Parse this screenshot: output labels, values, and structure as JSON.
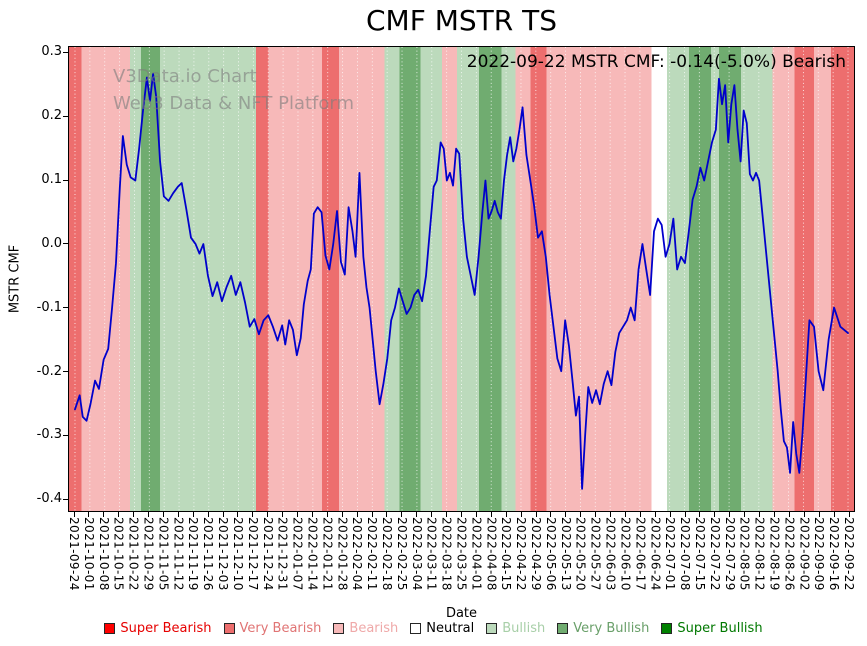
{
  "chart_data": {
    "type": "line",
    "title": "CMF MSTR TS",
    "xlabel": "Date",
    "ylabel": "MSTR CMF",
    "annotation": "2022-09-22 MSTR CMF: -0.14(-5.0%) Bearish",
    "watermark": {
      "line1": "V3Data.io Chart",
      "line2": "Web3 Data & NFT Platform"
    },
    "x_range": [
      "2021-09-24",
      "2022-09-22"
    ],
    "ylim": [
      -0.42,
      0.31
    ],
    "y_tick_labels": [
      0.3,
      0.2,
      0.1,
      0.0,
      -0.1,
      -0.2,
      -0.3,
      -0.4
    ],
    "x_tick_labels": [
      "2021-09-24",
      "2021-10-01",
      "2021-10-08",
      "2021-10-15",
      "2021-10-22",
      "2021-10-29",
      "2021-11-05",
      "2021-11-12",
      "2021-11-19",
      "2021-11-26",
      "2021-12-03",
      "2021-12-10",
      "2021-12-17",
      "2021-12-24",
      "2021-12-31",
      "2022-01-07",
      "2022-01-14",
      "2022-01-21",
      "2022-01-28",
      "2022-02-04",
      "2022-02-11",
      "2022-02-18",
      "2022-02-25",
      "2022-03-04",
      "2022-03-11",
      "2022-03-18",
      "2022-03-25",
      "2022-04-01",
      "2022-04-08",
      "2022-04-15",
      "2022-04-22",
      "2022-04-29",
      "2022-05-06",
      "2022-05-13",
      "2022-05-20",
      "2022-05-27",
      "2022-06-03",
      "2022-06-10",
      "2022-06-17",
      "2022-06-24",
      "2022-07-01",
      "2022-07-08",
      "2022-07-15",
      "2022-07-22",
      "2022-07-29",
      "2022-08-05",
      "2022-08-12",
      "2022-08-19",
      "2022-08-26",
      "2022-09-02",
      "2022-09-09",
      "2022-09-16",
      "2022-09-22"
    ],
    "grid": {
      "axis": "x",
      "style": "dotted",
      "color": "#ffffff"
    },
    "band_colors": {
      "super-bearish": "#ff0000",
      "very-bearish": "#ed6e6e",
      "bearish": "#f7b9b9",
      "neutral": "#ffffff",
      "bullish": "#bcdabc",
      "very-bullish": "#70ac70",
      "super-bullish": "#008000"
    },
    "background_bands": [
      {
        "start": 0.0,
        "end": 0.016,
        "state": "very-bearish"
      },
      {
        "start": 0.016,
        "end": 0.078,
        "state": "bearish"
      },
      {
        "start": 0.078,
        "end": 0.092,
        "state": "bullish"
      },
      {
        "start": 0.092,
        "end": 0.116,
        "state": "very-bullish"
      },
      {
        "start": 0.116,
        "end": 0.238,
        "state": "bullish"
      },
      {
        "start": 0.238,
        "end": 0.254,
        "state": "very-bearish"
      },
      {
        "start": 0.254,
        "end": 0.322,
        "state": "bearish"
      },
      {
        "start": 0.322,
        "end": 0.344,
        "state": "very-bearish"
      },
      {
        "start": 0.344,
        "end": 0.402,
        "state": "bearish"
      },
      {
        "start": 0.402,
        "end": 0.421,
        "state": "bullish"
      },
      {
        "start": 0.421,
        "end": 0.448,
        "state": "very-bullish"
      },
      {
        "start": 0.448,
        "end": 0.475,
        "state": "bullish"
      },
      {
        "start": 0.475,
        "end": 0.494,
        "state": "bearish"
      },
      {
        "start": 0.494,
        "end": 0.522,
        "state": "bullish"
      },
      {
        "start": 0.522,
        "end": 0.551,
        "state": "very-bullish"
      },
      {
        "start": 0.551,
        "end": 0.569,
        "state": "bullish"
      },
      {
        "start": 0.569,
        "end": 0.588,
        "state": "bearish"
      },
      {
        "start": 0.588,
        "end": 0.608,
        "state": "very-bearish"
      },
      {
        "start": 0.608,
        "end": 0.742,
        "state": "bearish"
      },
      {
        "start": 0.742,
        "end": 0.762,
        "state": "neutral"
      },
      {
        "start": 0.762,
        "end": 0.79,
        "state": "bullish"
      },
      {
        "start": 0.79,
        "end": 0.818,
        "state": "very-bullish"
      },
      {
        "start": 0.818,
        "end": 0.828,
        "state": "bullish"
      },
      {
        "start": 0.828,
        "end": 0.856,
        "state": "very-bullish"
      },
      {
        "start": 0.856,
        "end": 0.896,
        "state": "bullish"
      },
      {
        "start": 0.896,
        "end": 0.924,
        "state": "bearish"
      },
      {
        "start": 0.924,
        "end": 0.949,
        "state": "very-bearish"
      },
      {
        "start": 0.949,
        "end": 0.971,
        "state": "bearish"
      },
      {
        "start": 0.971,
        "end": 1.0,
        "state": "very-bearish"
      }
    ],
    "line": {
      "name": "MSTR CMF",
      "color": "#0000cc",
      "points": [
        [
          0.0,
          -0.26
        ],
        [
          0.006,
          -0.238
        ],
        [
          0.01,
          -0.272
        ],
        [
          0.015,
          -0.278
        ],
        [
          0.02,
          -0.252
        ],
        [
          0.026,
          -0.215
        ],
        [
          0.031,
          -0.228
        ],
        [
          0.037,
          -0.182
        ],
        [
          0.043,
          -0.165
        ],
        [
          0.048,
          -0.1
        ],
        [
          0.053,
          -0.03
        ],
        [
          0.058,
          0.09
        ],
        [
          0.062,
          0.17
        ],
        [
          0.067,
          0.125
        ],
        [
          0.072,
          0.105
        ],
        [
          0.078,
          0.1
        ],
        [
          0.083,
          0.15
        ],
        [
          0.088,
          0.21
        ],
        [
          0.093,
          0.262
        ],
        [
          0.097,
          0.225
        ],
        [
          0.101,
          0.268
        ],
        [
          0.105,
          0.232
        ],
        [
          0.11,
          0.13
        ],
        [
          0.115,
          0.075
        ],
        [
          0.121,
          0.068
        ],
        [
          0.127,
          0.08
        ],
        [
          0.133,
          0.09
        ],
        [
          0.138,
          0.096
        ],
        [
          0.144,
          0.055
        ],
        [
          0.15,
          0.01
        ],
        [
          0.156,
          0.0
        ],
        [
          0.161,
          -0.015
        ],
        [
          0.166,
          0.0
        ],
        [
          0.172,
          -0.05
        ],
        [
          0.178,
          -0.082
        ],
        [
          0.184,
          -0.06
        ],
        [
          0.19,
          -0.09
        ],
        [
          0.196,
          -0.068
        ],
        [
          0.202,
          -0.05
        ],
        [
          0.208,
          -0.08
        ],
        [
          0.214,
          -0.06
        ],
        [
          0.22,
          -0.092
        ],
        [
          0.226,
          -0.13
        ],
        [
          0.232,
          -0.118
        ],
        [
          0.238,
          -0.142
        ],
        [
          0.244,
          -0.12
        ],
        [
          0.25,
          -0.112
        ],
        [
          0.256,
          -0.13
        ],
        [
          0.262,
          -0.152
        ],
        [
          0.268,
          -0.128
        ],
        [
          0.272,
          -0.158
        ],
        [
          0.277,
          -0.12
        ],
        [
          0.282,
          -0.135
        ],
        [
          0.287,
          -0.175
        ],
        [
          0.292,
          -0.148
        ],
        [
          0.296,
          -0.095
        ],
        [
          0.301,
          -0.058
        ],
        [
          0.305,
          -0.04
        ],
        [
          0.309,
          0.048
        ],
        [
          0.314,
          0.058
        ],
        [
          0.319,
          0.05
        ],
        [
          0.324,
          -0.018
        ],
        [
          0.329,
          -0.04
        ],
        [
          0.334,
          0.0
        ],
        [
          0.339,
          0.052
        ],
        [
          0.344,
          -0.028
        ],
        [
          0.349,
          -0.048
        ],
        [
          0.354,
          0.058
        ],
        [
          0.359,
          0.02
        ],
        [
          0.363,
          -0.02
        ],
        [
          0.368,
          0.112
        ],
        [
          0.373,
          -0.02
        ],
        [
          0.377,
          -0.068
        ],
        [
          0.381,
          -0.1
        ],
        [
          0.385,
          -0.15
        ],
        [
          0.389,
          -0.2
        ],
        [
          0.394,
          -0.252
        ],
        [
          0.399,
          -0.22
        ],
        [
          0.404,
          -0.18
        ],
        [
          0.409,
          -0.12
        ],
        [
          0.414,
          -0.1
        ],
        [
          0.419,
          -0.07
        ],
        [
          0.424,
          -0.09
        ],
        [
          0.429,
          -0.11
        ],
        [
          0.434,
          -0.1
        ],
        [
          0.439,
          -0.08
        ],
        [
          0.444,
          -0.072
        ],
        [
          0.449,
          -0.09
        ],
        [
          0.454,
          -0.05
        ],
        [
          0.459,
          0.02
        ],
        [
          0.464,
          0.09
        ],
        [
          0.468,
          0.1
        ],
        [
          0.473,
          0.16
        ],
        [
          0.477,
          0.15
        ],
        [
          0.481,
          0.1
        ],
        [
          0.485,
          0.112
        ],
        [
          0.489,
          0.092
        ],
        [
          0.493,
          0.15
        ],
        [
          0.497,
          0.142
        ],
        [
          0.502,
          0.04
        ],
        [
          0.507,
          -0.02
        ],
        [
          0.512,
          -0.05
        ],
        [
          0.517,
          -0.08
        ],
        [
          0.522,
          -0.02
        ],
        [
          0.527,
          0.05
        ],
        [
          0.531,
          0.1
        ],
        [
          0.535,
          0.04
        ],
        [
          0.539,
          0.052
        ],
        [
          0.543,
          0.068
        ],
        [
          0.547,
          0.05
        ],
        [
          0.551,
          0.04
        ],
        [
          0.555,
          0.1
        ],
        [
          0.559,
          0.14
        ],
        [
          0.563,
          0.168
        ],
        [
          0.567,
          0.13
        ],
        [
          0.571,
          0.15
        ],
        [
          0.575,
          0.18
        ],
        [
          0.579,
          0.215
        ],
        [
          0.584,
          0.14
        ],
        [
          0.589,
          0.1
        ],
        [
          0.594,
          0.06
        ],
        [
          0.599,
          0.01
        ],
        [
          0.604,
          0.02
        ],
        [
          0.609,
          -0.02
        ],
        [
          0.614,
          -0.08
        ],
        [
          0.619,
          -0.13
        ],
        [
          0.624,
          -0.18
        ],
        [
          0.629,
          -0.2
        ],
        [
          0.634,
          -0.12
        ],
        [
          0.639,
          -0.16
        ],
        [
          0.644,
          -0.22
        ],
        [
          0.648,
          -0.27
        ],
        [
          0.652,
          -0.24
        ],
        [
          0.656,
          -0.385
        ],
        [
          0.66,
          -0.3
        ],
        [
          0.664,
          -0.225
        ],
        [
          0.669,
          -0.25
        ],
        [
          0.674,
          -0.23
        ],
        [
          0.679,
          -0.252
        ],
        [
          0.684,
          -0.22
        ],
        [
          0.689,
          -0.2
        ],
        [
          0.694,
          -0.222
        ],
        [
          0.699,
          -0.17
        ],
        [
          0.704,
          -0.14
        ],
        [
          0.709,
          -0.13
        ],
        [
          0.714,
          -0.12
        ],
        [
          0.719,
          -0.1
        ],
        [
          0.724,
          -0.12
        ],
        [
          0.729,
          -0.04
        ],
        [
          0.734,
          0.0
        ],
        [
          0.739,
          -0.04
        ],
        [
          0.744,
          -0.08
        ],
        [
          0.749,
          0.02
        ],
        [
          0.754,
          0.04
        ],
        [
          0.759,
          0.03
        ],
        [
          0.764,
          -0.02
        ],
        [
          0.769,
          0.0
        ],
        [
          0.774,
          0.04
        ],
        [
          0.779,
          -0.04
        ],
        [
          0.784,
          -0.02
        ],
        [
          0.789,
          -0.03
        ],
        [
          0.794,
          0.02
        ],
        [
          0.799,
          0.07
        ],
        [
          0.804,
          0.09
        ],
        [
          0.809,
          0.12
        ],
        [
          0.814,
          0.1
        ],
        [
          0.819,
          0.13
        ],
        [
          0.824,
          0.16
        ],
        [
          0.829,
          0.18
        ],
        [
          0.833,
          0.26
        ],
        [
          0.837,
          0.22
        ],
        [
          0.841,
          0.25
        ],
        [
          0.845,
          0.16
        ],
        [
          0.849,
          0.22
        ],
        [
          0.853,
          0.25
        ],
        [
          0.857,
          0.18
        ],
        [
          0.861,
          0.13
        ],
        [
          0.865,
          0.21
        ],
        [
          0.869,
          0.19
        ],
        [
          0.873,
          0.11
        ],
        [
          0.877,
          0.1
        ],
        [
          0.881,
          0.112
        ],
        [
          0.885,
          0.1
        ],
        [
          0.889,
          0.05
        ],
        [
          0.893,
          0.0
        ],
        [
          0.897,
          -0.05
        ],
        [
          0.901,
          -0.1
        ],
        [
          0.905,
          -0.15
        ],
        [
          0.909,
          -0.2
        ],
        [
          0.913,
          -0.26
        ],
        [
          0.917,
          -0.31
        ],
        [
          0.921,
          -0.32
        ],
        [
          0.925,
          -0.36
        ],
        [
          0.929,
          -0.28
        ],
        [
          0.933,
          -0.33
        ],
        [
          0.937,
          -0.36
        ],
        [
          0.941,
          -0.3
        ],
        [
          0.945,
          -0.22
        ],
        [
          0.95,
          -0.12
        ],
        [
          0.956,
          -0.13
        ],
        [
          0.962,
          -0.2
        ],
        [
          0.968,
          -0.23
        ],
        [
          0.975,
          -0.15
        ],
        [
          0.982,
          -0.1
        ],
        [
          0.99,
          -0.13
        ],
        [
          1.0,
          -0.14
        ]
      ]
    },
    "legend": [
      {
        "label": "Super Bearish",
        "state": "super-bearish",
        "swatch": "#ff0000",
        "text_color": "#e60000"
      },
      {
        "label": "Very Bearish",
        "state": "very-bearish",
        "swatch": "#ed6e6e",
        "text_color": "#e07474"
      },
      {
        "label": "Bearish",
        "state": "bearish",
        "swatch": "#f7b9b9",
        "text_color": "#efa9a9"
      },
      {
        "label": "Neutral",
        "state": "neutral",
        "swatch": "#ffffff",
        "text_color": "#000000"
      },
      {
        "label": "Bullish",
        "state": "bullish",
        "swatch": "#bcdabc",
        "text_color": "#a8cfa8"
      },
      {
        "label": "Very Bullish",
        "state": "very-bullish",
        "swatch": "#70ac70",
        "text_color": "#699f69"
      },
      {
        "label": "Super Bullish",
        "state": "super-bullish",
        "swatch": "#008000",
        "text_color": "#007800"
      }
    ]
  }
}
